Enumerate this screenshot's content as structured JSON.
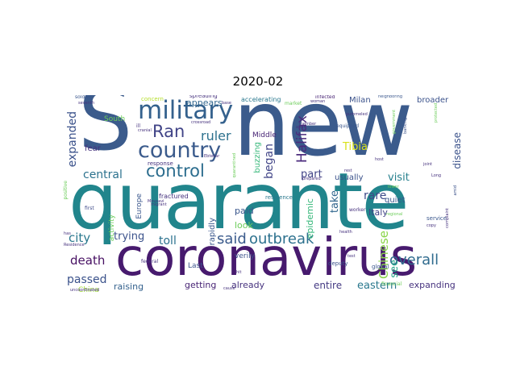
{
  "title": "2020-02",
  "words": [
    {
      "text": "new",
      "color": "#3b5b8c"
    },
    {
      "text": "quarante",
      "color": "#21858c"
    },
    {
      "text": "coronavirus",
      "color": "#471a6e"
    },
    {
      "text": "S",
      "color": "#3b5b8c"
    },
    {
      "text": "military",
      "color": "#34618d"
    },
    {
      "text": "country",
      "color": "#3b5b8c"
    },
    {
      "text": "control",
      "color": "#2c6d8e"
    },
    {
      "text": "Ran",
      "color": "#414487"
    },
    {
      "text": "said",
      "color": "#3b5b8c"
    },
    {
      "text": "outbreak",
      "color": "#2d718e"
    },
    {
      "text": "overall",
      "color": "#2f6b8e"
    },
    {
      "text": "Halifax",
      "color": "#4b2b7c"
    },
    {
      "text": "ruler",
      "color": "#2d718e"
    },
    {
      "text": "Tibia",
      "color": "#d9e21a"
    },
    {
      "text": "began",
      "color": "#414487"
    },
    {
      "text": "expanded",
      "color": "#3b528b"
    },
    {
      "text": "central",
      "color": "#2c728e"
    },
    {
      "text": "part",
      "color": "#414487"
    },
    {
      "text": "take",
      "color": "#31668e"
    },
    {
      "text": "visit",
      "color": "#27808e"
    },
    {
      "text": "Chinese",
      "color": "#89d548"
    },
    {
      "text": "death",
      "color": "#471063"
    },
    {
      "text": "passed",
      "color": "#3b528b"
    },
    {
      "text": "city",
      "color": "#2a788e"
    },
    {
      "text": "toll",
      "color": "#2c728e"
    },
    {
      "text": "trying",
      "color": "#3b528b"
    },
    {
      "text": "epidemic",
      "color": "#35b779"
    },
    {
      "text": "rare",
      "color": "#3e4a89"
    },
    {
      "text": "Italy",
      "color": "#414487"
    },
    {
      "text": "disease",
      "color": "#3b528b"
    },
    {
      "text": "see",
      "color": "#20a386"
    },
    {
      "text": "eastern",
      "color": "#2a788e"
    },
    {
      "text": "entire",
      "color": "#443a83"
    },
    {
      "text": "expanding",
      "color": "#46327e"
    },
    {
      "text": "raising",
      "color": "#34618d"
    },
    {
      "text": "getting",
      "color": "#482475"
    },
    {
      "text": "already",
      "color": "#46327e"
    },
    {
      "text": "appears",
      "color": "#31668e"
    },
    {
      "text": "Milan",
      "color": "#3b528b"
    },
    {
      "text": "broader",
      "color": "#3b528b"
    },
    {
      "text": "paid",
      "color": "#39568c"
    },
    {
      "text": "look",
      "color": "#6ccd5a"
    },
    {
      "text": "quiet",
      "color": "#39568c"
    },
    {
      "text": "usually",
      "color": "#3b528b"
    },
    {
      "text": "rapidly",
      "color": "#39568c"
    },
    {
      "text": "buzzing",
      "color": "#35b779"
    },
    {
      "text": "fear",
      "color": "#46327e"
    },
    {
      "text": "South",
      "color": "#6ccd5a"
    },
    {
      "text": "Middle",
      "color": "#482475"
    },
    {
      "text": "verily",
      "color": "#3b528b"
    },
    {
      "text": "Europe",
      "color": "#39568c"
    },
    {
      "text": "activity",
      "color": "#6ccd5a"
    },
    {
      "text": "China",
      "color": "#a0da39"
    },
    {
      "text": "Last",
      "color": "#3b528b"
    },
    {
      "text": "fractured",
      "color": "#46327e"
    },
    {
      "text": "accelerating",
      "color": "#2a788e"
    },
    {
      "text": "concern",
      "color": "#b5de2b"
    },
    {
      "text": "spreading",
      "color": "#46327e"
    },
    {
      "text": "response",
      "color": "#46327e"
    },
    {
      "text": "residence",
      "color": "#2a788e"
    },
    {
      "text": "global",
      "color": "#39568c"
    },
    {
      "text": "worker",
      "color": "#46327e"
    },
    {
      "text": "financial",
      "color": "#6ccd5a"
    },
    {
      "text": "service",
      "color": "#39568c"
    },
    {
      "text": "deputy",
      "color": "#3b528b"
    },
    {
      "text": "federal",
      "color": "#46327e"
    },
    {
      "text": "first",
      "color": "#3e4a89"
    },
    {
      "text": "positive",
      "color": "#6ccd5a"
    },
    {
      "text": "soldier",
      "color": "#39568c"
    },
    {
      "text": "market",
      "color": "#6ccd5a"
    },
    {
      "text": "infected",
      "color": "#482475"
    },
    {
      "text": "woman",
      "color": "#46327e"
    },
    {
      "text": "equipped",
      "color": "#39568c"
    },
    {
      "text": "government",
      "color": "#6ccd5a"
    },
    {
      "text": "banking",
      "color": "#3b528b"
    },
    {
      "text": "neighboring",
      "color": "#39568c"
    },
    {
      "text": "base",
      "color": "#46327e"
    },
    {
      "text": "crossroad",
      "color": "#46327e"
    },
    {
      "text": "Ebtekar",
      "color": "#46327e"
    },
    {
      "text": "ill",
      "color": "#46327e"
    },
    {
      "text": "cranial",
      "color": "#46327e"
    },
    {
      "text": "quarantined",
      "color": "#6ccd5a"
    },
    {
      "text": "health",
      "color": "#46327e"
    },
    {
      "text": "affair",
      "color": "#46327e"
    },
    {
      "text": "member",
      "color": "#46327e"
    },
    {
      "text": "pummeled",
      "color": "#46327e"
    },
    {
      "text": "prepared",
      "color": "#46327e"
    },
    {
      "text": "regional",
      "color": "#6ccd5a"
    },
    {
      "text": "complaint",
      "color": "#46327e"
    },
    {
      "text": "amid",
      "color": "#3b528b"
    },
    {
      "text": "Long",
      "color": "#46327e"
    },
    {
      "text": "protected",
      "color": "#6ccd5a"
    },
    {
      "text": "host",
      "color": "#46327e"
    },
    {
      "text": "seventh",
      "color": "#46327e"
    },
    {
      "text": "uncoordinated",
      "color": "#46327e"
    },
    {
      "text": "Mousavi",
      "color": "#46327e"
    },
    {
      "text": "migrant",
      "color": "#46327e"
    },
    {
      "text": "hit",
      "color": "#46327e"
    },
    {
      "text": "rest",
      "color": "#46327e"
    },
    {
      "text": "test",
      "color": "#46327e"
    },
    {
      "text": "lower",
      "color": "#6ccd5a"
    },
    {
      "text": "copy",
      "color": "#46327e"
    },
    {
      "text": "Residence",
      "color": "#46327e"
    },
    {
      "text": "has",
      "color": "#46327e"
    },
    {
      "text": "joint",
      "color": "#46327e"
    },
    {
      "text": "cause",
      "color": "#46327e"
    }
  ]
}
